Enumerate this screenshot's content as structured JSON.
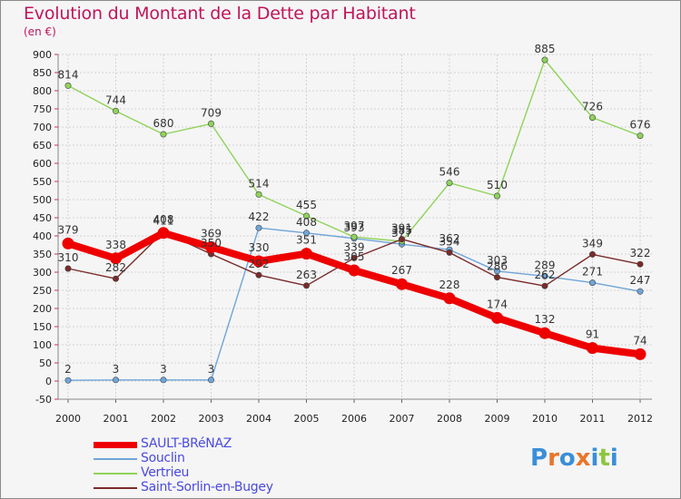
{
  "header": {
    "title": "Evolution du Montant de la Dette par Habitant",
    "subtitle": "(en €)"
  },
  "logo": {
    "text": "Proxiti",
    "colors": [
      "#3a8fd8",
      "#e8762c",
      "#3a8fd8",
      "#e8762c",
      "#3a8fd8",
      "#8cc63f",
      "#3a8fd8"
    ]
  },
  "chart_data": {
    "type": "line",
    "title": "Evolution du Montant de la Dette par Habitant",
    "subtitle": "(en €)",
    "xlabel": "",
    "ylabel": "",
    "x": [
      "2000",
      "2001",
      "2002",
      "2003",
      "2004",
      "2005",
      "2006",
      "2007",
      "2008",
      "2009",
      "2010",
      "2011",
      "2012"
    ],
    "ylim": [
      -50,
      900
    ],
    "yticks": [
      -50,
      0,
      50,
      100,
      150,
      200,
      250,
      300,
      350,
      400,
      450,
      500,
      550,
      600,
      650,
      700,
      750,
      800,
      850,
      900
    ],
    "grid": true,
    "legend_position": "bottom-left",
    "series": [
      {
        "name": "SAULT-BRéNAZ",
        "color": "#ee0000",
        "emphasis": true,
        "values": [
          379,
          338,
          408,
          369,
          330,
          351,
          305,
          267,
          228,
          174,
          132,
          91,
          74
        ],
        "labels": [
          "379",
          "338",
          "408",
          "369",
          "330",
          "351",
          "305",
          "267",
          "228",
          "174",
          "132",
          "91",
          "74"
        ]
      },
      {
        "name": "Souclin",
        "color": "#6fa5d8",
        "emphasis": false,
        "values": [
          2,
          3,
          3,
          3,
          422,
          408,
          393,
          377,
          362,
          303,
          289,
          271,
          247
        ],
        "labels": [
          "2",
          "3",
          "3",
          "3",
          "422",
          "408",
          "393",
          "377",
          "362",
          "303",
          "289",
          "271",
          "247"
        ]
      },
      {
        "name": "Vertrieu",
        "color": "#8ed35a",
        "emphasis": false,
        "values": [
          814,
          744,
          680,
          709,
          514,
          455,
          397,
          385,
          546,
          510,
          885,
          726,
          676
        ],
        "labels": [
          "814",
          "744",
          "680",
          "709",
          "514",
          "455",
          "397",
          "385",
          "546",
          "510",
          "885",
          "726",
          "676"
        ]
      },
      {
        "name": "Saint-Sorlin-en-Bugey",
        "color": "#7a2a2a",
        "emphasis": false,
        "values": [
          310,
          282,
          411,
          350,
          292,
          263,
          339,
          391,
          354,
          286,
          262,
          349,
          322
        ],
        "labels": [
          "310",
          "282",
          "411",
          "350",
          "292",
          "263",
          "339",
          "391",
          "354",
          "286",
          "262",
          "349",
          "322"
        ]
      }
    ]
  }
}
